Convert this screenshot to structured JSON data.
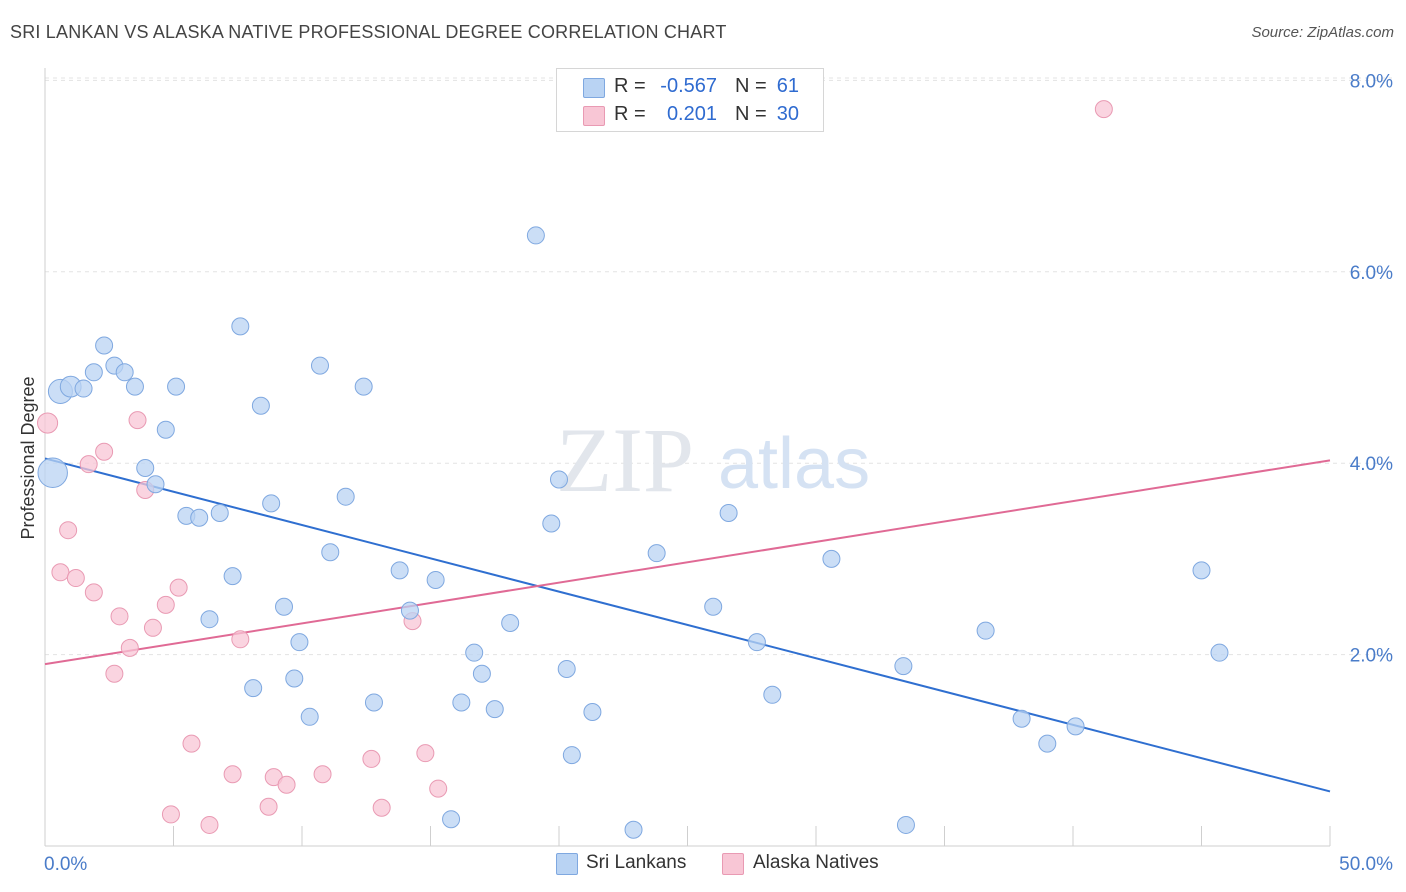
{
  "header": {
    "title": "SRI LANKAN VS ALASKA NATIVE PROFESSIONAL DEGREE CORRELATION CHART",
    "source": "Source: ZipAtlas.com"
  },
  "watermark": {
    "zip": "ZIP",
    "atlas": "atlas"
  },
  "legend": {
    "rows": [
      {
        "r_label": "R =",
        "r_value": "-0.567",
        "n_label": "N =",
        "n_value": "61"
      },
      {
        "r_label": "R =",
        "r_value": "0.201",
        "n_label": "N =",
        "n_value": "30"
      }
    ]
  },
  "bottom_legend": {
    "series1": "Sri Lankans",
    "series2": "Alaska Natives"
  },
  "colors": {
    "blue_fill": "#b9d3f3",
    "blue_stroke": "#7fa8e0",
    "blue_line": "#2f6fd0",
    "pink_fill": "#f8c6d5",
    "pink_stroke": "#e99ab3",
    "pink_line": "#e06a95",
    "tick_text": "#4a7cc9",
    "grid": "#e3e3e3"
  },
  "chart_data": {
    "type": "scatter",
    "title": "SRI LANKAN VS ALASKA NATIVE PROFESSIONAL DEGREE CORRELATION CHART",
    "xlabel": "",
    "ylabel": "Professional Degree",
    "xlim": [
      0,
      50
    ],
    "ylim": [
      0,
      8.3
    ],
    "x_tick_labels": [
      "0.0%",
      "50.0%"
    ],
    "y_ticks": [
      2,
      4,
      6,
      8
    ],
    "y_tick_labels": [
      "2.0%",
      "4.0%",
      "6.0%",
      "8.0%"
    ],
    "grid": true,
    "legend_placement": "top-center",
    "series": [
      {
        "name": "Sri Lankans",
        "r": -0.567,
        "n": 61,
        "trend": {
          "x": [
            0,
            50
          ],
          "y": [
            4.05,
            0.57
          ]
        },
        "points": [
          {
            "x": 0.3,
            "y": 3.9,
            "s": 3
          },
          {
            "x": 0.6,
            "y": 4.75,
            "s": 2
          },
          {
            "x": 1.0,
            "y": 4.8,
            "s": 1.5
          },
          {
            "x": 1.5,
            "y": 4.78,
            "s": 1
          },
          {
            "x": 1.9,
            "y": 4.95,
            "s": 1
          },
          {
            "x": 2.3,
            "y": 5.23,
            "s": 1
          },
          {
            "x": 2.7,
            "y": 5.02,
            "s": 1
          },
          {
            "x": 3.1,
            "y": 4.95,
            "s": 1
          },
          {
            "x": 3.5,
            "y": 4.8,
            "s": 1
          },
          {
            "x": 3.9,
            "y": 3.95,
            "s": 1
          },
          {
            "x": 4.3,
            "y": 3.78,
            "s": 1
          },
          {
            "x": 4.7,
            "y": 4.35,
            "s": 1
          },
          {
            "x": 5.1,
            "y": 4.8,
            "s": 1
          },
          {
            "x": 5.5,
            "y": 3.45,
            "s": 1
          },
          {
            "x": 6.0,
            "y": 3.43,
            "s": 1
          },
          {
            "x": 6.4,
            "y": 2.37,
            "s": 1
          },
          {
            "x": 6.8,
            "y": 3.48,
            "s": 1
          },
          {
            "x": 7.3,
            "y": 2.82,
            "s": 1
          },
          {
            "x": 7.6,
            "y": 5.43,
            "s": 1
          },
          {
            "x": 8.1,
            "y": 1.65,
            "s": 1
          },
          {
            "x": 8.4,
            "y": 4.6,
            "s": 1
          },
          {
            "x": 8.8,
            "y": 3.58,
            "s": 1
          },
          {
            "x": 9.3,
            "y": 2.5,
            "s": 1
          },
          {
            "x": 9.7,
            "y": 1.75,
            "s": 1
          },
          {
            "x": 9.9,
            "y": 2.13,
            "s": 1
          },
          {
            "x": 10.3,
            "y": 1.35,
            "s": 1
          },
          {
            "x": 10.7,
            "y": 5.02,
            "s": 1
          },
          {
            "x": 11.1,
            "y": 3.07,
            "s": 1
          },
          {
            "x": 11.7,
            "y": 3.65,
            "s": 1
          },
          {
            "x": 12.4,
            "y": 4.8,
            "s": 1
          },
          {
            "x": 12.8,
            "y": 1.5,
            "s": 1
          },
          {
            "x": 13.8,
            "y": 2.88,
            "s": 1
          },
          {
            "x": 14.2,
            "y": 2.46,
            "s": 1
          },
          {
            "x": 15.2,
            "y": 2.78,
            "s": 1
          },
          {
            "x": 15.8,
            "y": 0.28,
            "s": 1
          },
          {
            "x": 16.2,
            "y": 1.5,
            "s": 1
          },
          {
            "x": 16.7,
            "y": 2.02,
            "s": 1
          },
          {
            "x": 17.0,
            "y": 1.8,
            "s": 1
          },
          {
            "x": 17.5,
            "y": 1.43,
            "s": 1
          },
          {
            "x": 18.1,
            "y": 2.33,
            "s": 1
          },
          {
            "x": 19.1,
            "y": 6.38,
            "s": 1
          },
          {
            "x": 19.7,
            "y": 3.37,
            "s": 1
          },
          {
            "x": 20.0,
            "y": 3.83,
            "s": 1
          },
          {
            "x": 20.3,
            "y": 1.85,
            "s": 1
          },
          {
            "x": 20.5,
            "y": 0.95,
            "s": 1
          },
          {
            "x": 21.3,
            "y": 1.4,
            "s": 1
          },
          {
            "x": 22.9,
            "y": 0.17,
            "s": 1
          },
          {
            "x": 23.8,
            "y": 3.06,
            "s": 1
          },
          {
            "x": 26.0,
            "y": 2.5,
            "s": 1
          },
          {
            "x": 26.6,
            "y": 3.48,
            "s": 1
          },
          {
            "x": 27.7,
            "y": 2.13,
            "s": 1
          },
          {
            "x": 28.3,
            "y": 1.58,
            "s": 1
          },
          {
            "x": 30.6,
            "y": 3.0,
            "s": 1
          },
          {
            "x": 33.4,
            "y": 1.88,
            "s": 1
          },
          {
            "x": 33.5,
            "y": 0.22,
            "s": 1
          },
          {
            "x": 36.6,
            "y": 2.25,
            "s": 1
          },
          {
            "x": 38.0,
            "y": 1.33,
            "s": 1
          },
          {
            "x": 39.0,
            "y": 1.07,
            "s": 1
          },
          {
            "x": 40.1,
            "y": 1.25,
            "s": 1
          },
          {
            "x": 45.0,
            "y": 2.88,
            "s": 1
          },
          {
            "x": 45.7,
            "y": 2.02,
            "s": 1
          }
        ]
      },
      {
        "name": "Alaska Natives",
        "r": 0.201,
        "n": 30,
        "trend": {
          "x": [
            0,
            50
          ],
          "y": [
            1.9,
            4.03
          ]
        },
        "points": [
          {
            "x": 0.1,
            "y": 4.42,
            "s": 1.4
          },
          {
            "x": 0.6,
            "y": 2.86,
            "s": 1
          },
          {
            "x": 0.9,
            "y": 3.3,
            "s": 1
          },
          {
            "x": 1.2,
            "y": 2.8,
            "s": 1
          },
          {
            "x": 1.7,
            "y": 3.99,
            "s": 1
          },
          {
            "x": 1.9,
            "y": 2.65,
            "s": 1
          },
          {
            "x": 2.3,
            "y": 4.12,
            "s": 1
          },
          {
            "x": 2.7,
            "y": 1.8,
            "s": 1
          },
          {
            "x": 2.9,
            "y": 2.4,
            "s": 1
          },
          {
            "x": 3.3,
            "y": 2.07,
            "s": 1
          },
          {
            "x": 3.6,
            "y": 4.45,
            "s": 1
          },
          {
            "x": 3.9,
            "y": 3.72,
            "s": 1
          },
          {
            "x": 4.2,
            "y": 2.28,
            "s": 1
          },
          {
            "x": 4.7,
            "y": 2.52,
            "s": 1
          },
          {
            "x": 4.9,
            "y": 0.33,
            "s": 1
          },
          {
            "x": 5.2,
            "y": 2.7,
            "s": 1
          },
          {
            "x": 5.7,
            "y": 1.07,
            "s": 1
          },
          {
            "x": 6.4,
            "y": 0.22,
            "s": 1
          },
          {
            "x": 7.3,
            "y": 0.75,
            "s": 1
          },
          {
            "x": 7.6,
            "y": 2.16,
            "s": 1
          },
          {
            "x": 8.7,
            "y": 0.41,
            "s": 1
          },
          {
            "x": 8.9,
            "y": 0.72,
            "s": 1
          },
          {
            "x": 9.4,
            "y": 0.64,
            "s": 1
          },
          {
            "x": 10.8,
            "y": 0.75,
            "s": 1
          },
          {
            "x": 12.7,
            "y": 0.91,
            "s": 1
          },
          {
            "x": 13.1,
            "y": 0.4,
            "s": 1
          },
          {
            "x": 14.3,
            "y": 2.35,
            "s": 1
          },
          {
            "x": 14.8,
            "y": 0.97,
            "s": 1
          },
          {
            "x": 15.3,
            "y": 0.6,
            "s": 1
          },
          {
            "x": 41.2,
            "y": 7.7,
            "s": 1
          }
        ]
      }
    ]
  }
}
